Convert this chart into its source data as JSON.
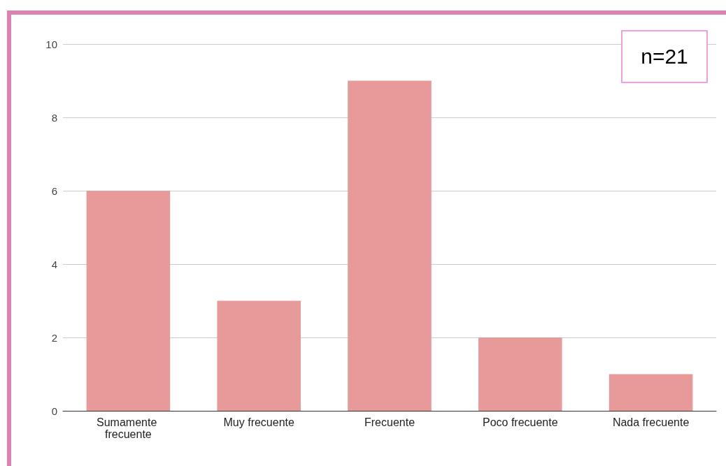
{
  "chart_data": {
    "type": "bar",
    "categories": [
      "Sumamente frecuente",
      "Muy frecuente",
      "Frecuente",
      "Poco frecuente",
      "Nada frecuente"
    ],
    "values": [
      6,
      3,
      9,
      2,
      1
    ],
    "color": "#e8999a",
    "ylim": [
      0,
      10
    ],
    "yticks": [
      0,
      2,
      4,
      6,
      8,
      10
    ],
    "grid": "y",
    "annotations": [
      "n=21"
    ]
  }
}
